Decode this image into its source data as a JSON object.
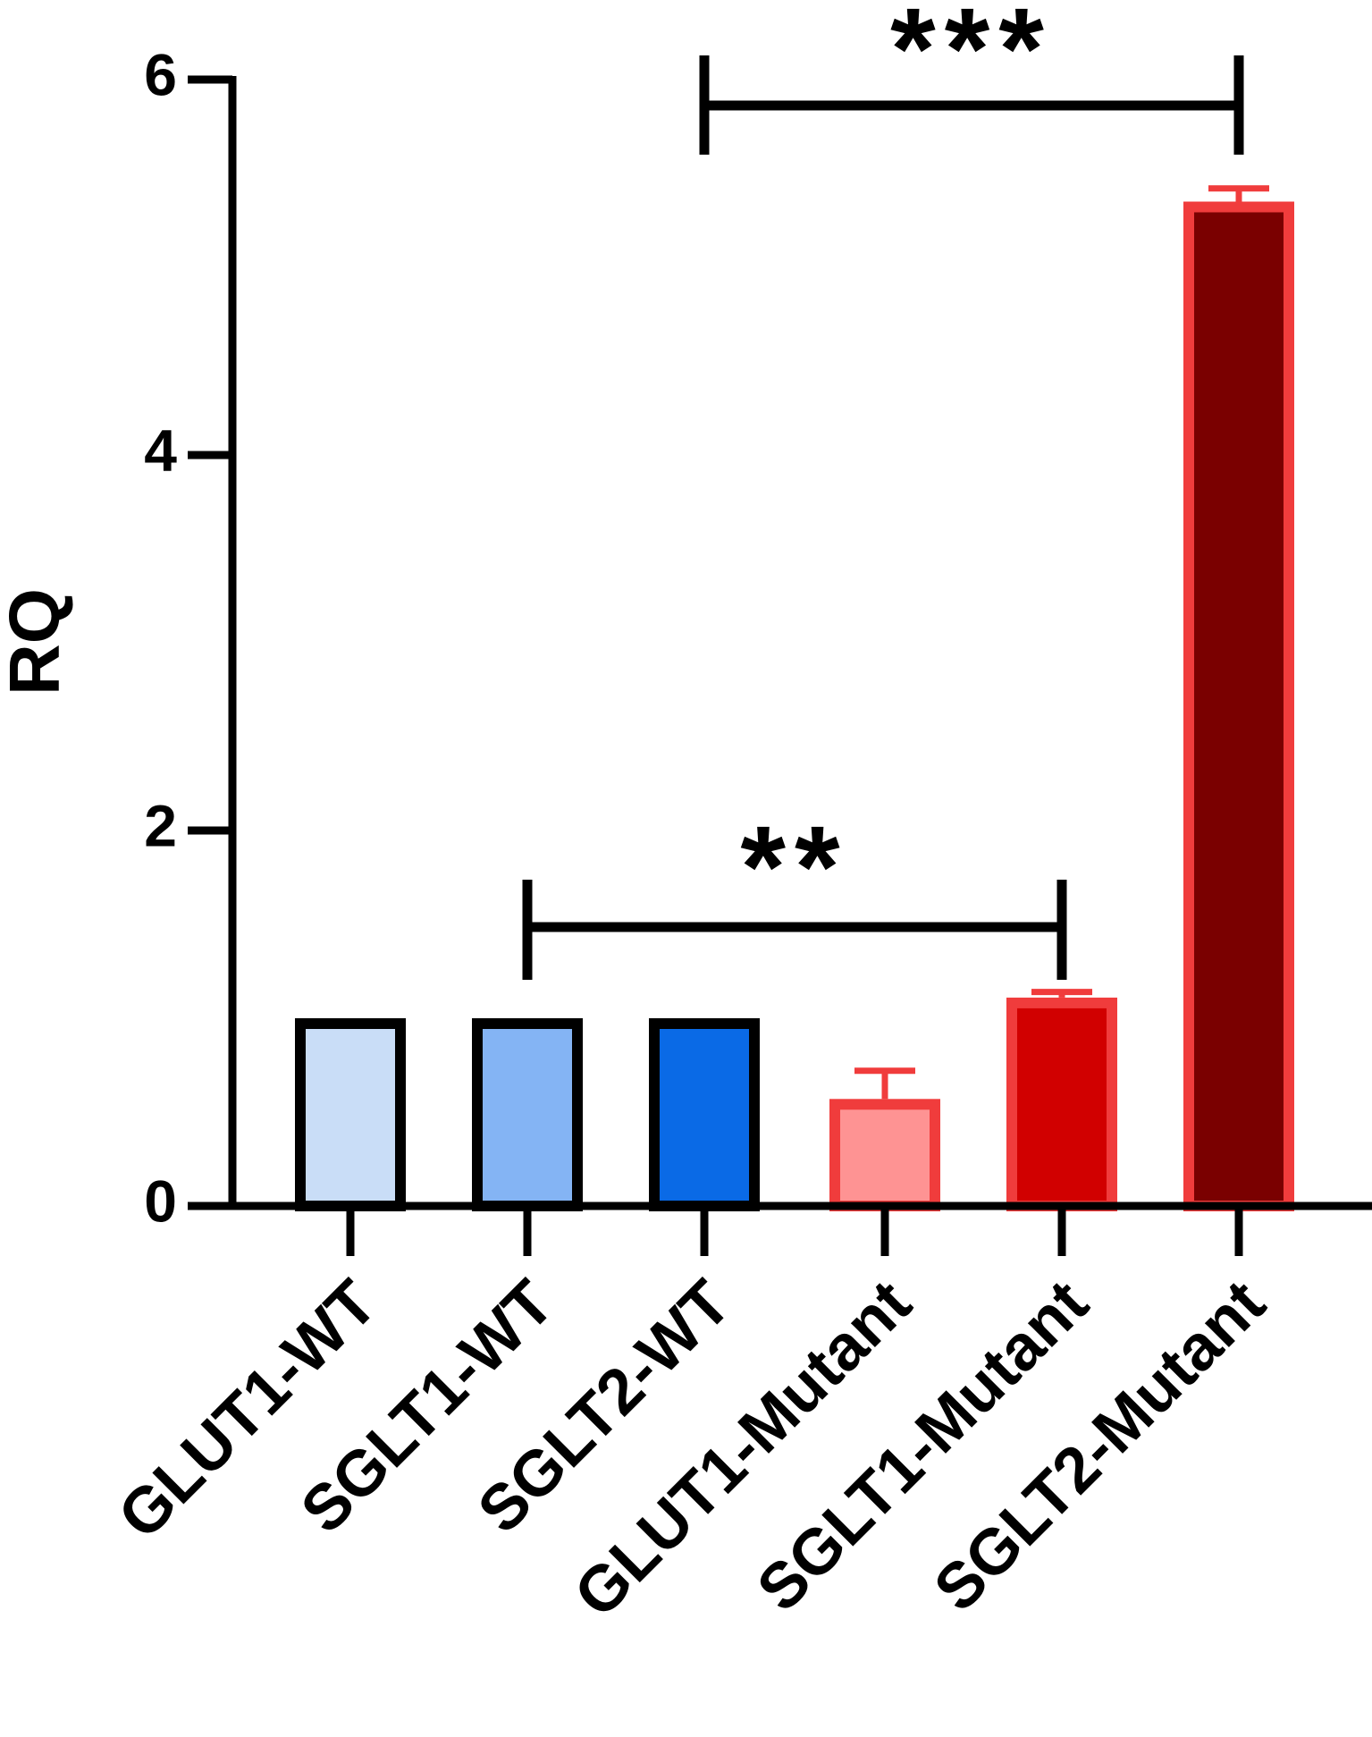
{
  "chart_data": {
    "type": "bar",
    "y_label": "RQ",
    "categories": [
      "GLUT1-WT",
      "SGLT1-WT",
      "SGLT2-WT",
      "GLUT1-Mutant",
      "SGLT1-Mutant",
      "SGLT2-Mutant"
    ],
    "values": [
      1,
      1,
      1,
      0.57,
      1.11,
      5.35
    ],
    "errors": [
      null,
      null,
      null,
      0.15,
      0.03,
      0.07
    ],
    "colors": [
      "#c9ddf7",
      "#84b4f4",
      "#0a6ae6",
      "#fe9393",
      "#d10000",
      "#7a0000"
    ],
    "edge_colors": [
      "#000000",
      "#000000",
      "#000000",
      "#f03c3c",
      "#f03c3c",
      "#f03c3c"
    ],
    "ylim": [
      0,
      6
    ],
    "yticks": [
      0,
      2,
      4,
      6
    ],
    "annotations": [
      {
        "text": "**"
      },
      {
        "text": "***"
      }
    ]
  }
}
